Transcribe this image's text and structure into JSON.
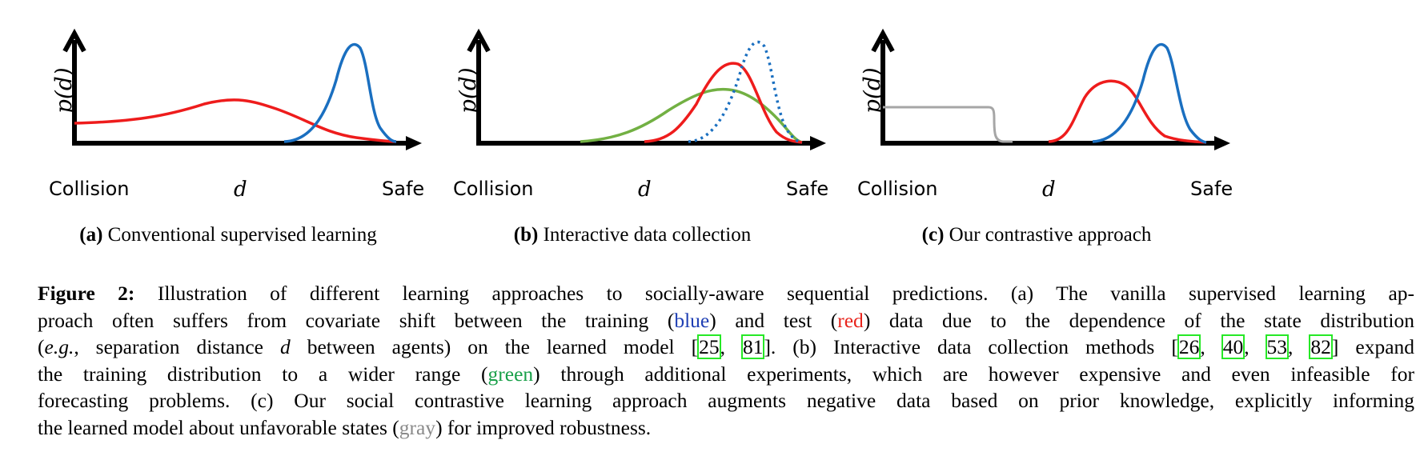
{
  "panels": [
    {
      "ylabel": "p(d)",
      "x_left": "Collision",
      "x_mid": "d",
      "x_right": "Safe",
      "sub_label": "(a)",
      "sub_text": "Conventional supervised learning"
    },
    {
      "ylabel": "p(d)",
      "x_left": "Collision",
      "x_mid": "d",
      "x_right": "Safe",
      "sub_label": "(b)",
      "sub_text": "Interactive data collection"
    },
    {
      "ylabel": "p(d)",
      "x_left": "Collision",
      "x_mid": "d",
      "x_right": "Safe",
      "sub_label": "(c)",
      "sub_text": "Our contrastive approach"
    }
  ],
  "colors": {
    "blue": "#1a6fc0",
    "red": "#ee1c1c",
    "green": "#72b043",
    "gray": "#a6a6a6",
    "axis": "#000000"
  },
  "caption": {
    "label": "Figure 2:",
    "l1": "Illustration of different learning approaches to socially-aware sequential predictions. (a) The vanilla supervised learning ap-",
    "l2a": "proach often suffers from covariate shift between the training (",
    "l2_blue": "blue",
    "l2b": ") and test (",
    "l2_red": "red",
    "l2c": ") data due to the dependence of the state distribution",
    "l3a": "(",
    "l3_eg": "e.g.",
    "l3b": ", separation distance ",
    "l3_d": "d",
    "l3c": " between agents) on the learned model [",
    "cite1": "25",
    "sep1": ", ",
    "cite2": "81",
    "l3d": "]. (b) Interactive data collection methods [",
    "cite3": "26",
    "sep2": ", ",
    "cite4": "40",
    "sep3": ", ",
    "cite5": "53",
    "sep4": ", ",
    "cite6": "82",
    "l3e": "] expand",
    "l4a": "the training distribution to a wider range (",
    "l4_green": "green",
    "l4b": ") through additional experiments, which are however expensive and even infeasible for",
    "l5": "forecasting problems. (c) Our social contrastive learning approach augments negative data based on prior knowledge, explicitly informing",
    "l6a": "the learned model about unfavorable states (",
    "l6_gray": "gray",
    "l6b": ") for improved robustness."
  }
}
